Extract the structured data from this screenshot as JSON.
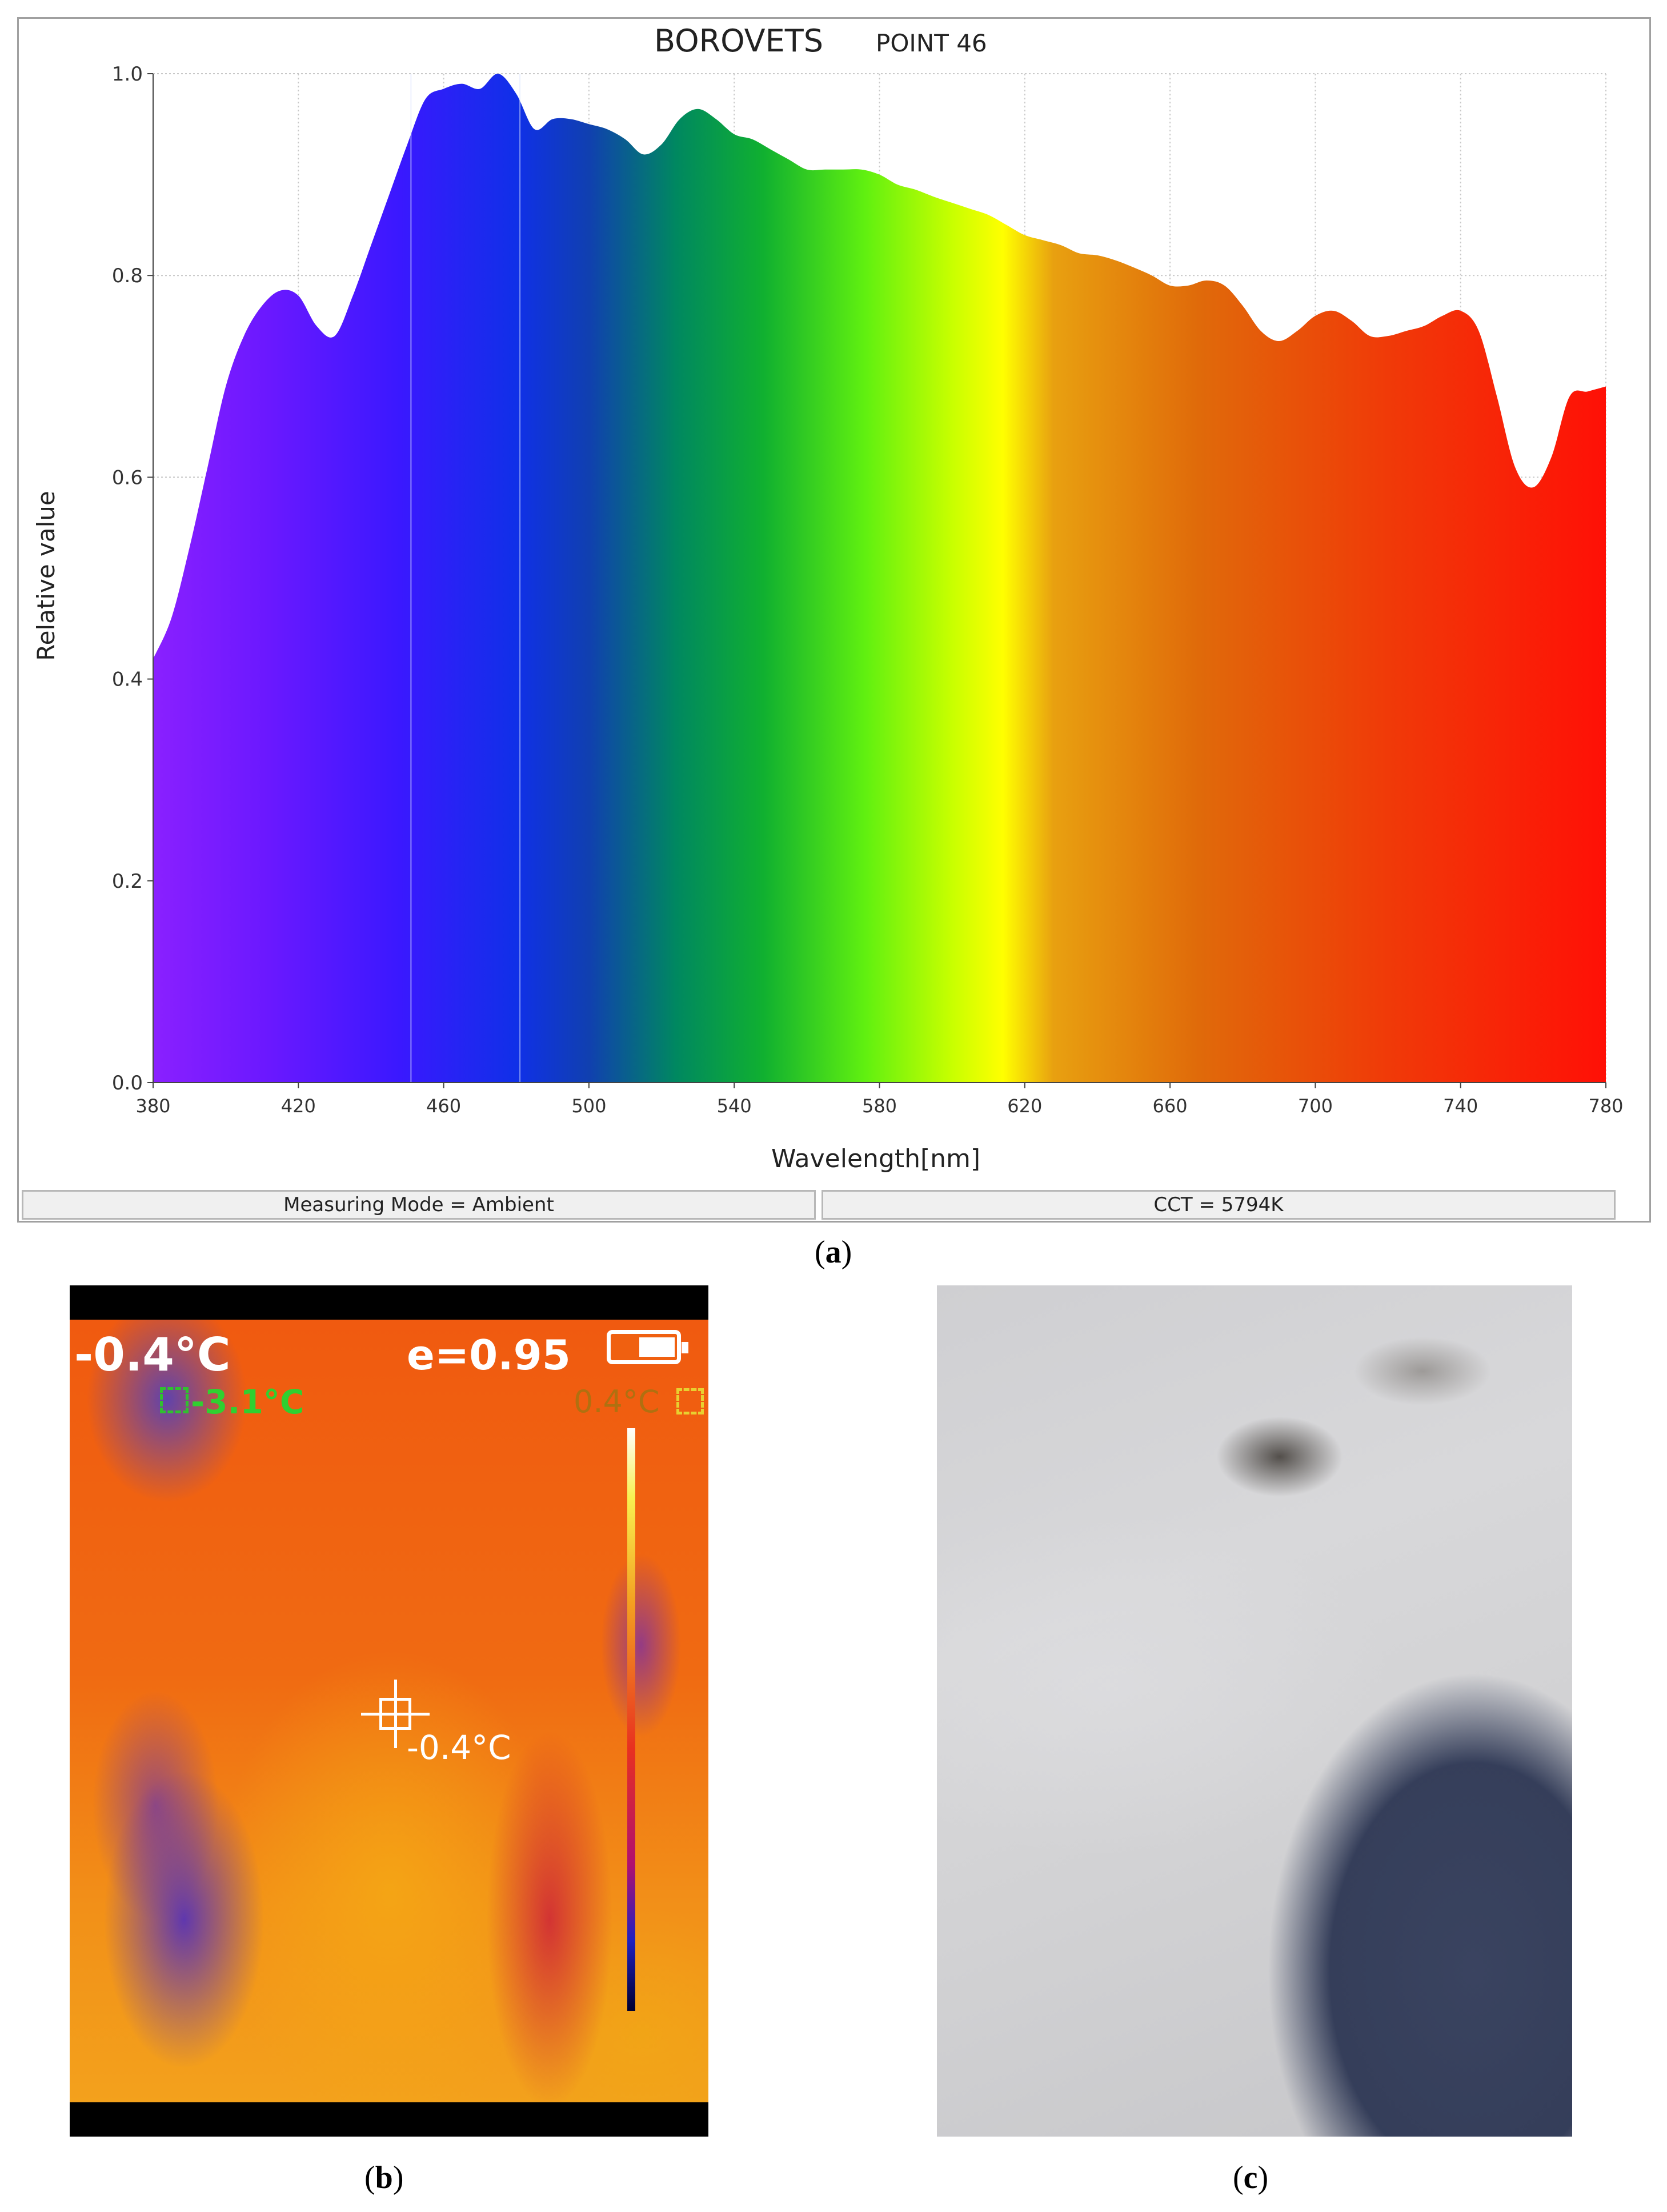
{
  "chart_data": {
    "type": "area",
    "title": "BOROVETS",
    "subtitle": "POINT 46",
    "xlabel": "Wavelength[nm]",
    "ylabel": "Relative value",
    "xlim": [
      380,
      780
    ],
    "ylim": [
      0.0,
      1.0
    ],
    "x_ticks": [
      "380",
      "420",
      "460",
      "500",
      "540",
      "580",
      "620",
      "660",
      "700",
      "740",
      "780"
    ],
    "y_ticks": [
      "0.0",
      "0.2",
      "0.4",
      "0.6",
      "0.8",
      "1.0"
    ],
    "grid": true,
    "fill": "visible-spectrum gradient",
    "x": [
      380,
      385,
      390,
      395,
      400,
      405,
      410,
      415,
      420,
      425,
      430,
      435,
      440,
      445,
      450,
      455,
      460,
      465,
      470,
      475,
      480,
      485,
      490,
      495,
      500,
      505,
      510,
      515,
      520,
      525,
      530,
      535,
      540,
      545,
      550,
      555,
      560,
      565,
      570,
      575,
      580,
      585,
      590,
      595,
      600,
      605,
      610,
      615,
      620,
      625,
      630,
      635,
      640,
      645,
      650,
      655,
      660,
      665,
      670,
      675,
      680,
      685,
      690,
      695,
      700,
      705,
      710,
      715,
      720,
      725,
      730,
      735,
      740,
      745,
      750,
      755,
      760,
      765,
      770,
      775,
      780
    ],
    "y": [
      0.42,
      0.46,
      0.53,
      0.61,
      0.69,
      0.74,
      0.77,
      0.785,
      0.78,
      0.75,
      0.74,
      0.78,
      0.83,
      0.88,
      0.93,
      0.975,
      0.985,
      0.99,
      0.985,
      1.0,
      0.98,
      0.945,
      0.955,
      0.955,
      0.95,
      0.945,
      0.935,
      0.92,
      0.93,
      0.955,
      0.965,
      0.955,
      0.94,
      0.935,
      0.925,
      0.915,
      0.905,
      0.905,
      0.905,
      0.905,
      0.9,
      0.89,
      0.885,
      0.878,
      0.872,
      0.866,
      0.86,
      0.85,
      0.84,
      0.835,
      0.83,
      0.822,
      0.82,
      0.815,
      0.808,
      0.8,
      0.79,
      0.79,
      0.795,
      0.79,
      0.77,
      0.745,
      0.735,
      0.745,
      0.76,
      0.765,
      0.755,
      0.74,
      0.74,
      0.745,
      0.75,
      0.76,
      0.765,
      0.745,
      0.68,
      0.61,
      0.59,
      0.62,
      0.68,
      0.685,
      0.69
    ],
    "markers_nm": [
      451,
      481
    ]
  },
  "status": {
    "measuring_mode": "Measuring Mode = Ambient",
    "cct": "CCT = 5794K"
  },
  "captions": {
    "a_open": "(",
    "a": "a",
    "a_close": ")",
    "b_open": "(",
    "b": "b",
    "b_close": ")",
    "c_open": "(",
    "c": "c",
    "c_close": ")"
  },
  "thermal": {
    "main_temp": "-0.4°C",
    "emissivity": "e=0.95",
    "min_temp": "-3.1°C",
    "max_temp": "0.4°C",
    "center_temp": "-0.4°C",
    "battery_icon": "battery-icon"
  }
}
